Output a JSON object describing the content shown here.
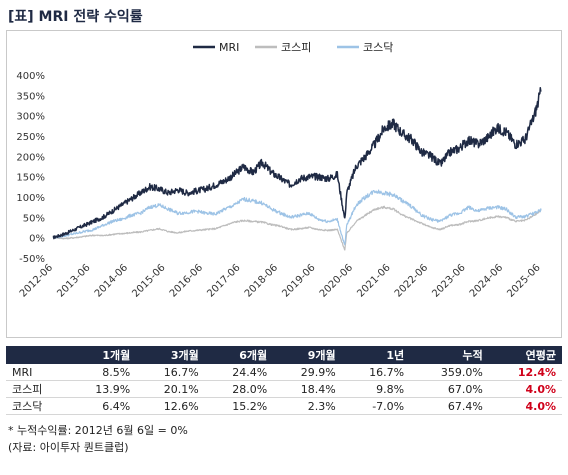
{
  "title": "[표] MRI 전략 수익률",
  "chart_data": {
    "type": "line",
    "title": "",
    "xlabel": "",
    "ylabel": "",
    "ylim": [
      -50,
      400
    ],
    "yticks": [
      "-50%",
      "0%",
      "50%",
      "100%",
      "150%",
      "200%",
      "250%",
      "300%",
      "350%",
      "400%"
    ],
    "xticks": [
      "2012-06",
      "2013-06",
      "2014-06",
      "2015-06",
      "2016-06",
      "2017-06",
      "2018-06",
      "2019-06",
      "2020-06",
      "2021-06",
      "2022-06",
      "2023-06",
      "2024-06",
      "2025-06"
    ],
    "legend_position": "top-center",
    "grid": false,
    "x": [
      2012.42,
      2012.75,
      2013.0,
      2013.25,
      2013.5,
      2013.75,
      2014.0,
      2014.25,
      2014.5,
      2014.75,
      2015.0,
      2015.25,
      2015.5,
      2015.75,
      2016.0,
      2016.25,
      2016.5,
      2016.75,
      2017.0,
      2017.25,
      2017.5,
      2017.75,
      2018.0,
      2018.25,
      2018.5,
      2018.75,
      2019.0,
      2019.25,
      2019.5,
      2019.75,
      2020.0,
      2020.2,
      2020.25,
      2020.5,
      2020.75,
      2021.0,
      2021.25,
      2021.5,
      2021.75,
      2022.0,
      2022.25,
      2022.5,
      2022.75,
      2023.0,
      2023.25,
      2023.5,
      2023.75,
      2024.0,
      2024.25,
      2024.5,
      2024.75,
      2025.0,
      2025.25,
      2025.43
    ],
    "series": [
      {
        "name": "MRI",
        "color": "#1f2a44",
        "values": [
          0,
          10,
          20,
          30,
          40,
          50,
          65,
          80,
          95,
          110,
          125,
          120,
          110,
          118,
          110,
          115,
          120,
          130,
          140,
          155,
          175,
          160,
          185,
          160,
          145,
          130,
          145,
          150,
          150,
          145,
          155,
          45,
          110,
          175,
          200,
          230,
          270,
          280,
          255,
          240,
          210,
          200,
          180,
          210,
          220,
          240,
          230,
          245,
          270,
          260,
          230,
          240,
          300,
          359
        ]
      },
      {
        "name": "코스피",
        "color": "#bdbdbd",
        "values": [
          0,
          -2,
          0,
          3,
          6,
          5,
          8,
          10,
          12,
          14,
          18,
          22,
          15,
          12,
          16,
          18,
          20,
          22,
          30,
          38,
          42,
          40,
          38,
          32,
          28,
          20,
          22,
          25,
          20,
          18,
          20,
          -30,
          10,
          40,
          55,
          70,
          75,
          70,
          55,
          45,
          35,
          25,
          20,
          30,
          32,
          40,
          42,
          48,
          52,
          50,
          40,
          42,
          55,
          67
        ]
      },
      {
        "name": "코스닥",
        "color": "#9dc3e6",
        "values": [
          0,
          5,
          10,
          15,
          20,
          30,
          40,
          45,
          55,
          60,
          75,
          80,
          70,
          60,
          62,
          65,
          60,
          58,
          70,
          80,
          95,
          90,
          85,
          70,
          60,
          50,
          55,
          60,
          45,
          40,
          45,
          -20,
          30,
          80,
          100,
          115,
          110,
          105,
          90,
          75,
          55,
          45,
          40,
          55,
          60,
          75,
          65,
          72,
          75,
          70,
          50,
          52,
          60,
          67.4
        ]
      }
    ]
  },
  "table": {
    "headers": [
      "",
      "1개월",
      "3개월",
      "6개월",
      "9개월",
      "1년",
      "누적",
      "연평균"
    ],
    "rows": [
      {
        "label": "MRI",
        "cells": [
          "8.5%",
          "16.7%",
          "24.4%",
          "29.9%",
          "16.7%",
          "359.0%",
          "12.4%"
        ]
      },
      {
        "label": "코스피",
        "cells": [
          "13.9%",
          "20.1%",
          "28.0%",
          "18.4%",
          "9.8%",
          "67.0%",
          "4.0%"
        ]
      },
      {
        "label": "코스닥",
        "cells": [
          "6.4%",
          "12.6%",
          "15.2%",
          "2.3%",
          "-7.0%",
          "67.4%",
          "4.0%"
        ]
      }
    ]
  },
  "notes": {
    "note1": "* 누적수익률: 2012년 6월 6일 = 0%",
    "source": "(자료: 아이투자 퀀트클럽)"
  }
}
